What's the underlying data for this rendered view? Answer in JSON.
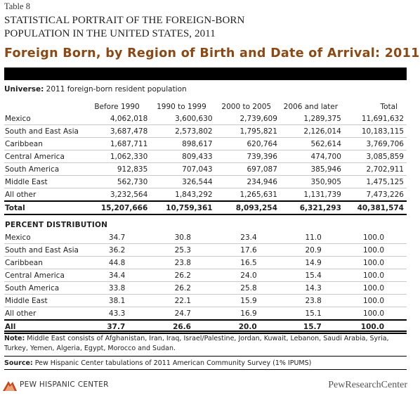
{
  "table_number": "Table 8",
  "portrait_title_line1": "STATISTICAL PORTRAIT OF THE FOREIGN-BORN",
  "portrait_title_line2": "POPULATION IN THE UNITED STATES, 2011",
  "headline": "Foreign Born, by Region of Birth and Date of Arrival: 2011",
  "universe_label": "Universe:",
  "universe_text": "2011 foreign-born resident population",
  "columns": [
    "Before 1990",
    "1990 to 1999",
    "2000 to 2005",
    "2006 and later",
    "Total"
  ],
  "counts": {
    "rows": [
      {
        "label": "Mexico",
        "values": [
          "4,062,018",
          "3,600,630",
          "2,739,609",
          "1,289,375",
          "11,691,632"
        ]
      },
      {
        "label": "South and East Asia",
        "values": [
          "3,687,478",
          "2,573,802",
          "1,795,821",
          "2,126,014",
          "10,183,115"
        ]
      },
      {
        "label": "Caribbean",
        "values": [
          "1,687,711",
          "898,617",
          "620,764",
          "562,614",
          "3,769,706"
        ]
      },
      {
        "label": "Central America",
        "values": [
          "1,062,330",
          "809,433",
          "739,396",
          "474,700",
          "3,085,859"
        ]
      },
      {
        "label": "South America",
        "values": [
          "912,835",
          "707,043",
          "697,087",
          "385,946",
          "2,702,911"
        ]
      },
      {
        "label": "Middle East",
        "values": [
          "562,730",
          "326,544",
          "234,946",
          "350,905",
          "1,475,125"
        ]
      },
      {
        "label": "All other",
        "values": [
          "3,232,564",
          "1,843,292",
          "1,265,631",
          "1,131,739",
          "7,473,226"
        ]
      }
    ],
    "total": {
      "label": "Total",
      "values": [
        "15,207,666",
        "10,759,361",
        "8,093,254",
        "6,321,293",
        "40,381,574"
      ]
    }
  },
  "percent_heading": "PERCENT DISTRIBUTION",
  "percent": {
    "rows": [
      {
        "label": "Mexico",
        "values": [
          "34.7",
          "30.8",
          "23.4",
          "11.0",
          "100.0"
        ]
      },
      {
        "label": "South and East Asia",
        "values": [
          "36.2",
          "25.3",
          "17.6",
          "20.9",
          "100.0"
        ]
      },
      {
        "label": "Caribbean",
        "values": [
          "44.8",
          "23.8",
          "16.5",
          "14.9",
          "100.0"
        ]
      },
      {
        "label": "Central America",
        "values": [
          "34.4",
          "26.2",
          "24.0",
          "15.4",
          "100.0"
        ]
      },
      {
        "label": "South America",
        "values": [
          "33.8",
          "26.2",
          "25.8",
          "14.3",
          "100.0"
        ]
      },
      {
        "label": "Middle East",
        "values": [
          "38.1",
          "22.1",
          "15.9",
          "23.8",
          "100.0"
        ]
      },
      {
        "label": "All other",
        "values": [
          "43.3",
          "24.7",
          "16.9",
          "15.1",
          "100.0"
        ]
      }
    ],
    "total": {
      "label": "All",
      "values": [
        "37.7",
        "26.6",
        "20.0",
        "15.7",
        "100.0"
      ]
    }
  },
  "note_label": "Note:",
  "note_text": "Middle East consists of Afghanistan, Iran, Iraq, Israel/Palestine, Jordan, Kuwait, Lebanon, Saudi Arabia, Syria, Turkey, Yemen, Algeria, Egypt, Morocco and Sudan.",
  "source_label": "Source:",
  "source_text": "Pew Hispanic Center tabulations of 2011 American Community Survey (1% IPUMS)",
  "footer_left": "PEW HISPANIC CENTER",
  "footer_right": "PewResearchCenter",
  "colors": {
    "headline": "#8b4a15",
    "logo": "#c8461b"
  }
}
